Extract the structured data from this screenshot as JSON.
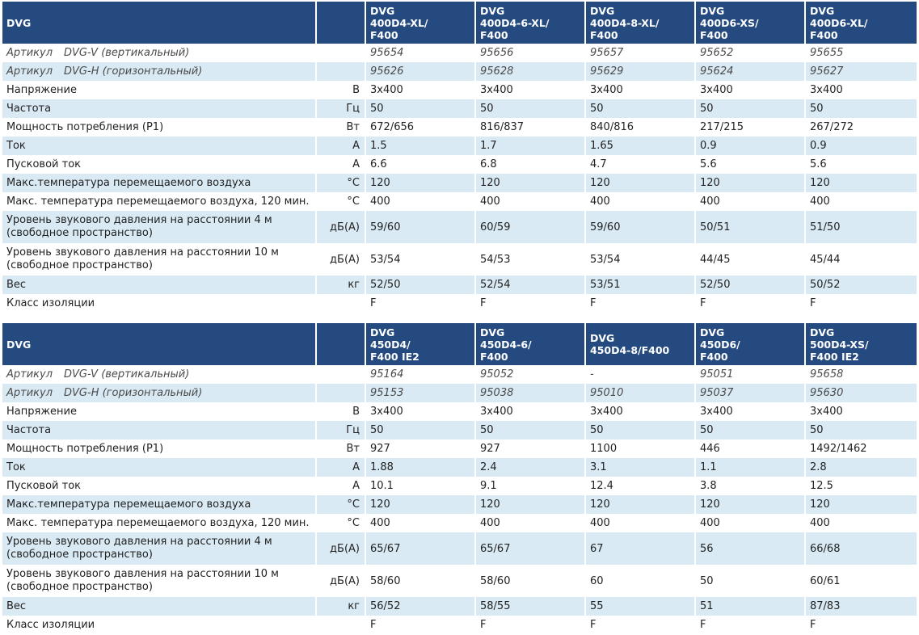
{
  "tables": [
    {
      "corner": "DVG",
      "models": [
        "DVG\n400D4-XL/\nF400",
        "DVG\n400D4-6-XL/\nF400",
        "DVG\n400D4-8-XL/\nF400",
        "DVG\n400D6-XS/\nF400",
        "DVG\n400D6-XL/\nF400"
      ],
      "rows": [
        {
          "label": "Артикул",
          "sub": "DVG-V (вертикальный)",
          "unit": "",
          "values": [
            "95654",
            "95656",
            "95657",
            "95652",
            "95655"
          ],
          "article": true
        },
        {
          "label": "Артикул",
          "sub": "DVG-H (горизонтальный)",
          "unit": "",
          "values": [
            "95626",
            "95628",
            "95629",
            "95624",
            "95627"
          ],
          "article": true
        },
        {
          "label": "Напряжение",
          "unit": "В",
          "values": [
            "3x400",
            "3x400",
            "3x400",
            "3x400",
            "3x400"
          ]
        },
        {
          "label": "Частота",
          "unit": "Гц",
          "values": [
            "50",
            "50",
            "50",
            "50",
            "50"
          ]
        },
        {
          "label": "Мощность потребления (P1)",
          "unit": "Вт",
          "values": [
            "672/656",
            "816/837",
            "840/816",
            "217/215",
            "267/272"
          ]
        },
        {
          "label": "Ток",
          "unit": "А",
          "values": [
            "1.5",
            "1.7",
            "1.65",
            "0.9",
            "0.9"
          ]
        },
        {
          "label": "Пусковой ток",
          "unit": "А",
          "values": [
            "6.6",
            "6.8",
            "4.7",
            "5.6",
            "5.6"
          ]
        },
        {
          "label": "Макс.температура перемещаемого воздуха",
          "unit": "°С",
          "values": [
            "120",
            "120",
            "120",
            "120",
            "120"
          ]
        },
        {
          "label": "Макс. температура перемещаемого воздуха, 120 мин.",
          "unit": "°С",
          "values": [
            "400",
            "400",
            "400",
            "400",
            "400"
          ]
        },
        {
          "label": "Уровень звукового давления на расстоянии 4 м (свободное пространство)",
          "unit": "дБ(А)",
          "values": [
            "59/60",
            "60/59",
            "59/60",
            "50/51",
            "51/50"
          ],
          "tall": true
        },
        {
          "label": "Уровень звукового давления на расстоянии 10 м (свободное пространство)",
          "unit": "дБ(А)",
          "values": [
            "53/54",
            "54/53",
            "53/54",
            "44/45",
            "45/44"
          ],
          "tall": true
        },
        {
          "label": "Вес",
          "unit": "кг",
          "values": [
            "52/50",
            "52/54",
            "53/51",
            "52/50",
            "50/52"
          ]
        },
        {
          "label": "Класс изоляции",
          "unit": "",
          "values": [
            "F",
            "F",
            "F",
            "F",
            "F"
          ]
        }
      ]
    },
    {
      "corner": "DVG",
      "models": [
        "DVG\n450D4/\nF400 IE2",
        "DVG\n450D4-6/\nF400",
        "DVG\n450D4-8/F400",
        "DVG\n450D6/\nF400",
        "DVG\n500D4-XS/\nF400 IE2"
      ],
      "rows": [
        {
          "label": "Артикул",
          "sub": "DVG-V (вертикальный)",
          "unit": "",
          "values": [
            "95164",
            "95052",
            "-",
            "95051",
            "95658"
          ],
          "article": true
        },
        {
          "label": "Артикул",
          "sub": "DVG-H (горизонтальный)",
          "unit": "",
          "values": [
            "95153",
            "95038",
            "95010",
            "95037",
            "95630"
          ],
          "article": true
        },
        {
          "label": "Напряжение",
          "unit": "В",
          "values": [
            "3x400",
            "3x400",
            "3x400",
            "3x400",
            "3x400"
          ]
        },
        {
          "label": "Частота",
          "unit": "Гц",
          "values": [
            "50",
            "50",
            "50",
            "50",
            "50"
          ]
        },
        {
          "label": "Мощность потребления (P1)",
          "unit": "Вт",
          "values": [
            "927",
            "927",
            "1100",
            "446",
            "1492/1462"
          ]
        },
        {
          "label": "Ток",
          "unit": "А",
          "values": [
            "1.88",
            "2.4",
            "3.1",
            "1.1",
            "2.8"
          ]
        },
        {
          "label": "Пусковой ток",
          "unit": "А",
          "values": [
            "10.1",
            "9.1",
            "12.4",
            "3.8",
            "12.5"
          ]
        },
        {
          "label": "Макс.температура перемещаемого воздуха",
          "unit": "°С",
          "values": [
            "120",
            "120",
            "120",
            "120",
            "120"
          ]
        },
        {
          "label": "Макс. температура перемещаемого воздуха, 120 мин.",
          "unit": "°С",
          "values": [
            "400",
            "400",
            "400",
            "400",
            "400"
          ]
        },
        {
          "label": "Уровень звукового давления на расстоянии 4 м (свободное пространство)",
          "unit": "дБ(А)",
          "values": [
            "65/67",
            "65/67",
            "67",
            "56",
            "66/68"
          ],
          "tall": true
        },
        {
          "label": "Уровень звукового давления на расстоянии 10 м (свободное пространство)",
          "unit": "дБ(А)",
          "values": [
            "58/60",
            "58/60",
            "60",
            "50",
            "60/61"
          ],
          "tall": true
        },
        {
          "label": "Вес",
          "unit": "кг",
          "values": [
            "56/52",
            "58/55",
            "55",
            "51",
            "87/83"
          ]
        },
        {
          "label": "Класс изоляции",
          "unit": "",
          "values": [
            "F",
            "F",
            "F",
            "F",
            "F"
          ]
        }
      ]
    }
  ],
  "colors": {
    "header_bg": "#244a80",
    "header_text": "#ffffff",
    "row_alt_bg": "#d9eaf4",
    "text": "#222222"
  }
}
